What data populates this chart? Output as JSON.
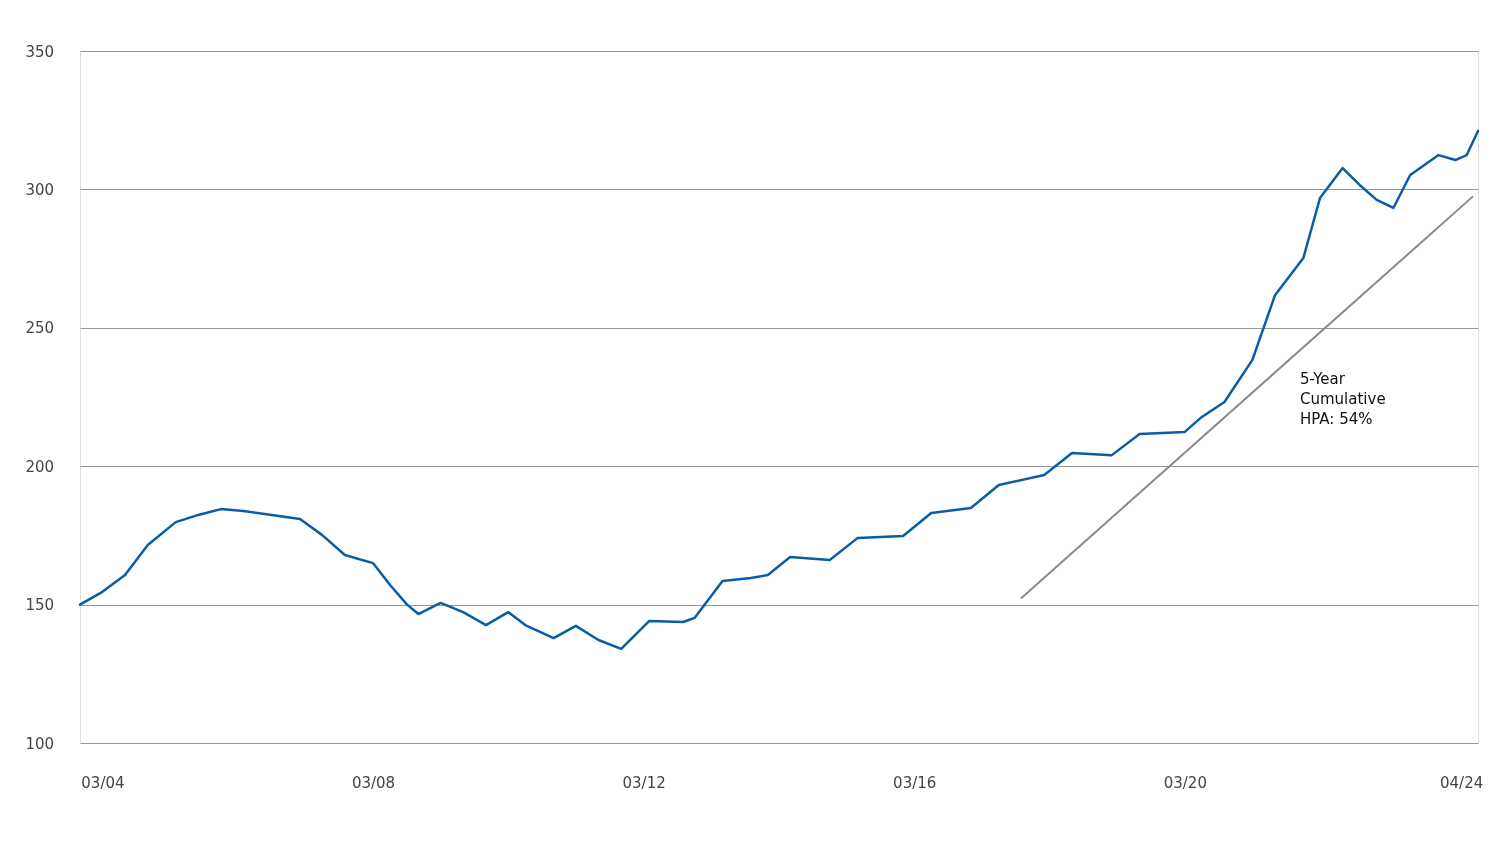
{
  "chart_data": {
    "type": "line",
    "x": [
      "2003-11",
      "2004-03",
      "2004-07",
      "2004-11",
      "2005-04",
      "2005-08",
      "2005-12",
      "2006-04",
      "2006-09",
      "2007-02",
      "2007-06",
      "2007-10",
      "2008-03",
      "2008-06",
      "2008-09",
      "2008-11",
      "2009-03",
      "2009-07",
      "2009-11",
      "2010-03",
      "2010-06",
      "2010-11",
      "2011-03",
      "2011-07",
      "2011-11",
      "2012-04",
      "2012-10",
      "2012-12",
      "2013-05",
      "2013-10",
      "2014-01",
      "2014-05",
      "2014-12",
      "2015-05",
      "2016-01",
      "2016-06",
      "2017-01",
      "2017-06",
      "2018-02",
      "2018-07",
      "2019-02",
      "2019-07",
      "2020-03",
      "2020-06",
      "2020-10",
      "2021-03",
      "2021-07",
      "2021-12",
      "2022-03",
      "2022-07",
      "2022-10",
      "2023-01",
      "2023-04",
      "2023-07",
      "2023-12",
      "2024-03",
      "2024-05",
      "2024-07"
    ],
    "series": [
      {
        "color": "#0a5ca8",
        "values": [
          150,
          154.6,
          160.7,
          171.5,
          179.8,
          182.4,
          184.5,
          183.8,
          182.4,
          180.9,
          175.1,
          167.9,
          165.0,
          157.1,
          150,
          146.6,
          150.6,
          147.3,
          142.6,
          147.3,
          142.6,
          137.9,
          142.3,
          137.2,
          134.0,
          144.1,
          143.7,
          145.2,
          158.5,
          159.6,
          160.7,
          167.2,
          166.1,
          174.1,
          174.8,
          183.1,
          184.9,
          193.2,
          196.8,
          204.8,
          204.0,
          211.6,
          212.4,
          217.8,
          223.2,
          238.4,
          261.8,
          275.2,
          296.9,
          307.7,
          301.6,
          296.2,
          293.3,
          305.2,
          312.4,
          310.6,
          312.4,
          321.1
        ]
      },
      {
        "type": "line",
        "color": "#8a8a8a",
        "x": [
          "2017-10",
          "2024-06"
        ],
        "values": [
          152.4,
          297.3
        ]
      }
    ],
    "xlim": [
      "2003-11",
      "2024-07"
    ],
    "xticks": [
      {
        "value": "2004-03",
        "label": "03/04"
      },
      {
        "value": "2008-03",
        "label": "03/08"
      },
      {
        "value": "2012-03",
        "label": "03/12"
      },
      {
        "value": "2016-03",
        "label": "03/16"
      },
      {
        "value": "2020-03",
        "label": "03/20"
      },
      {
        "value": "2024-04",
        "label": "04/24"
      }
    ],
    "ylim": [
      100,
      350
    ],
    "yticks": [
      100,
      150,
      200,
      250,
      300,
      350
    ],
    "grid": "y",
    "legend": false,
    "marker": "none",
    "line_style": "solid",
    "annotations": [
      "5-Year\nCumulative\nHPA: 54%"
    ]
  }
}
